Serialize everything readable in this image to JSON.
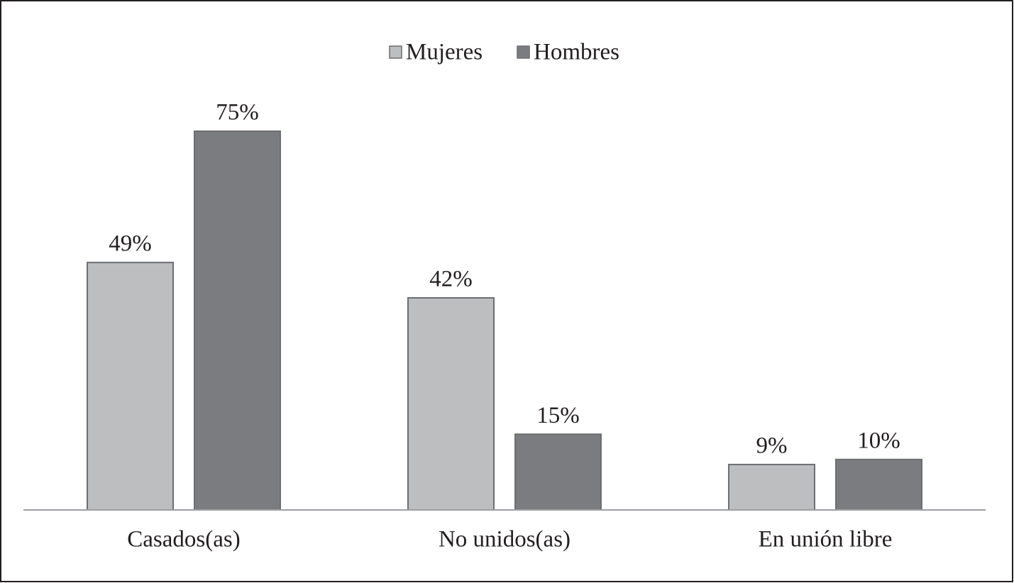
{
  "chart_data": {
    "type": "bar",
    "categories": [
      "Casados(as)",
      "No unidos(as)",
      "En unión libre"
    ],
    "series": [
      {
        "name": "Mujeres",
        "color": "#bdbec0",
        "values": [
          49,
          42,
          9
        ],
        "value_labels": [
          "49%",
          "42%",
          "9%"
        ]
      },
      {
        "name": "Hombres",
        "color": "#7b7c80",
        "values": [
          75,
          15,
          10
        ],
        "value_labels": [
          "75%",
          "15%",
          "10%"
        ]
      }
    ],
    "legend": "top"
  }
}
